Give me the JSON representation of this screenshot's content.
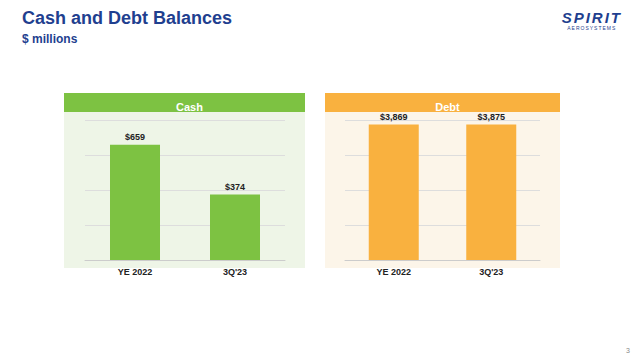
{
  "header": {
    "title": "Cash and Debt Balances",
    "subtitle": "$ millions"
  },
  "logo": {
    "text": "SPIRIT",
    "subtext": "AEROSYSTEMS"
  },
  "page_number": "3",
  "chart_data": [
    {
      "type": "bar",
      "title": "Cash",
      "categories": [
        "YE 2022",
        "3Q'23"
      ],
      "values": [
        659,
        374
      ],
      "value_labels": [
        "$659",
        "$374"
      ],
      "color": "#7dc242",
      "data_labels": true,
      "ylim": [
        0,
        800
      ],
      "yticks": [
        0,
        200,
        400,
        600,
        800
      ],
      "grid": true,
      "tick_labels": "x"
    },
    {
      "type": "bar",
      "title": "Debt",
      "categories": [
        "YE 2022",
        "3Q'23"
      ],
      "values": [
        3869,
        3875
      ],
      "value_labels": [
        "$3,869",
        "$3,875"
      ],
      "color": "#f9b13f",
      "data_labels": true,
      "ylim": [
        0,
        4000
      ],
      "yticks": [
        0,
        1000,
        2000,
        3000,
        4000
      ],
      "grid": true,
      "tick_labels": "x"
    }
  ]
}
